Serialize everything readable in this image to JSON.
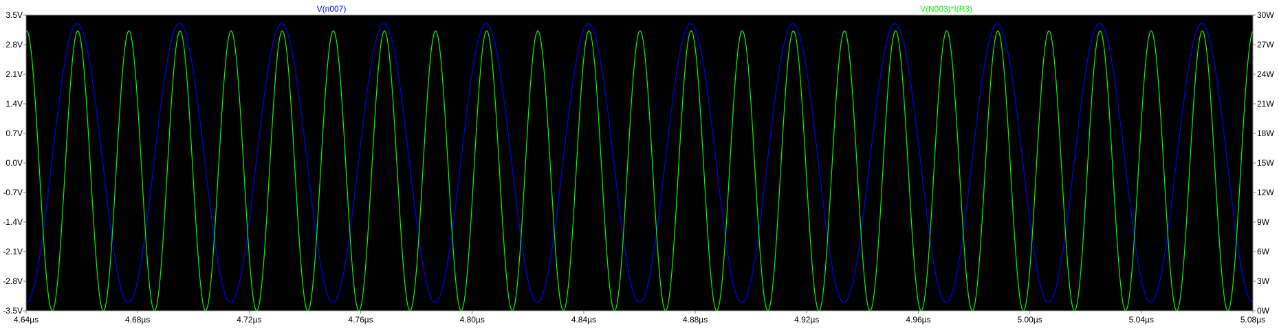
{
  "chart_data": {
    "type": "line",
    "background_color": "#000000",
    "grid": false,
    "x_axis": {
      "unit": "µs",
      "range": [
        4.64,
        5.08
      ],
      "ticks": [
        "4.64µs",
        "4.68µs",
        "4.72µs",
        "4.76µs",
        "4.80µs",
        "4.84µs",
        "4.88µs",
        "4.92µs",
        "4.96µs",
        "5.00µs",
        "5.04µs",
        "5.08µs"
      ]
    },
    "left_axis": {
      "unit": "V",
      "range": [
        -3.5,
        3.5
      ],
      "ticks": [
        "3.5V",
        "2.8V",
        "2.1V",
        "1.4V",
        "0.7V",
        "0.0V",
        "-0.7V",
        "-1.4V",
        "-2.1V",
        "-2.8V",
        "-3.5V"
      ]
    },
    "right_axis": {
      "unit": "W",
      "range": [
        0,
        30
      ],
      "ticks": [
        "30W",
        "27W",
        "24W",
        "21W",
        "18W",
        "15W",
        "12W",
        "9W",
        "6W",
        "3W",
        "0W"
      ]
    },
    "series": [
      {
        "name": "V(n007)",
        "color": "#0000ff",
        "axis": "left",
        "shape": "sine",
        "amplitude": 3.3,
        "offset": 0,
        "period_us": 0.03667,
        "phase_deg": -90,
        "x_start": 4.64,
        "x_end": 5.08
      },
      {
        "name": "V(N003)*I(R3)",
        "color": "#00ff00",
        "axis": "right",
        "shape": "sine",
        "amplitude": 14.2,
        "offset": 14.2,
        "period_us": 0.018333,
        "phase_deg": 86,
        "x_start": 4.64,
        "x_end": 5.08
      }
    ]
  }
}
